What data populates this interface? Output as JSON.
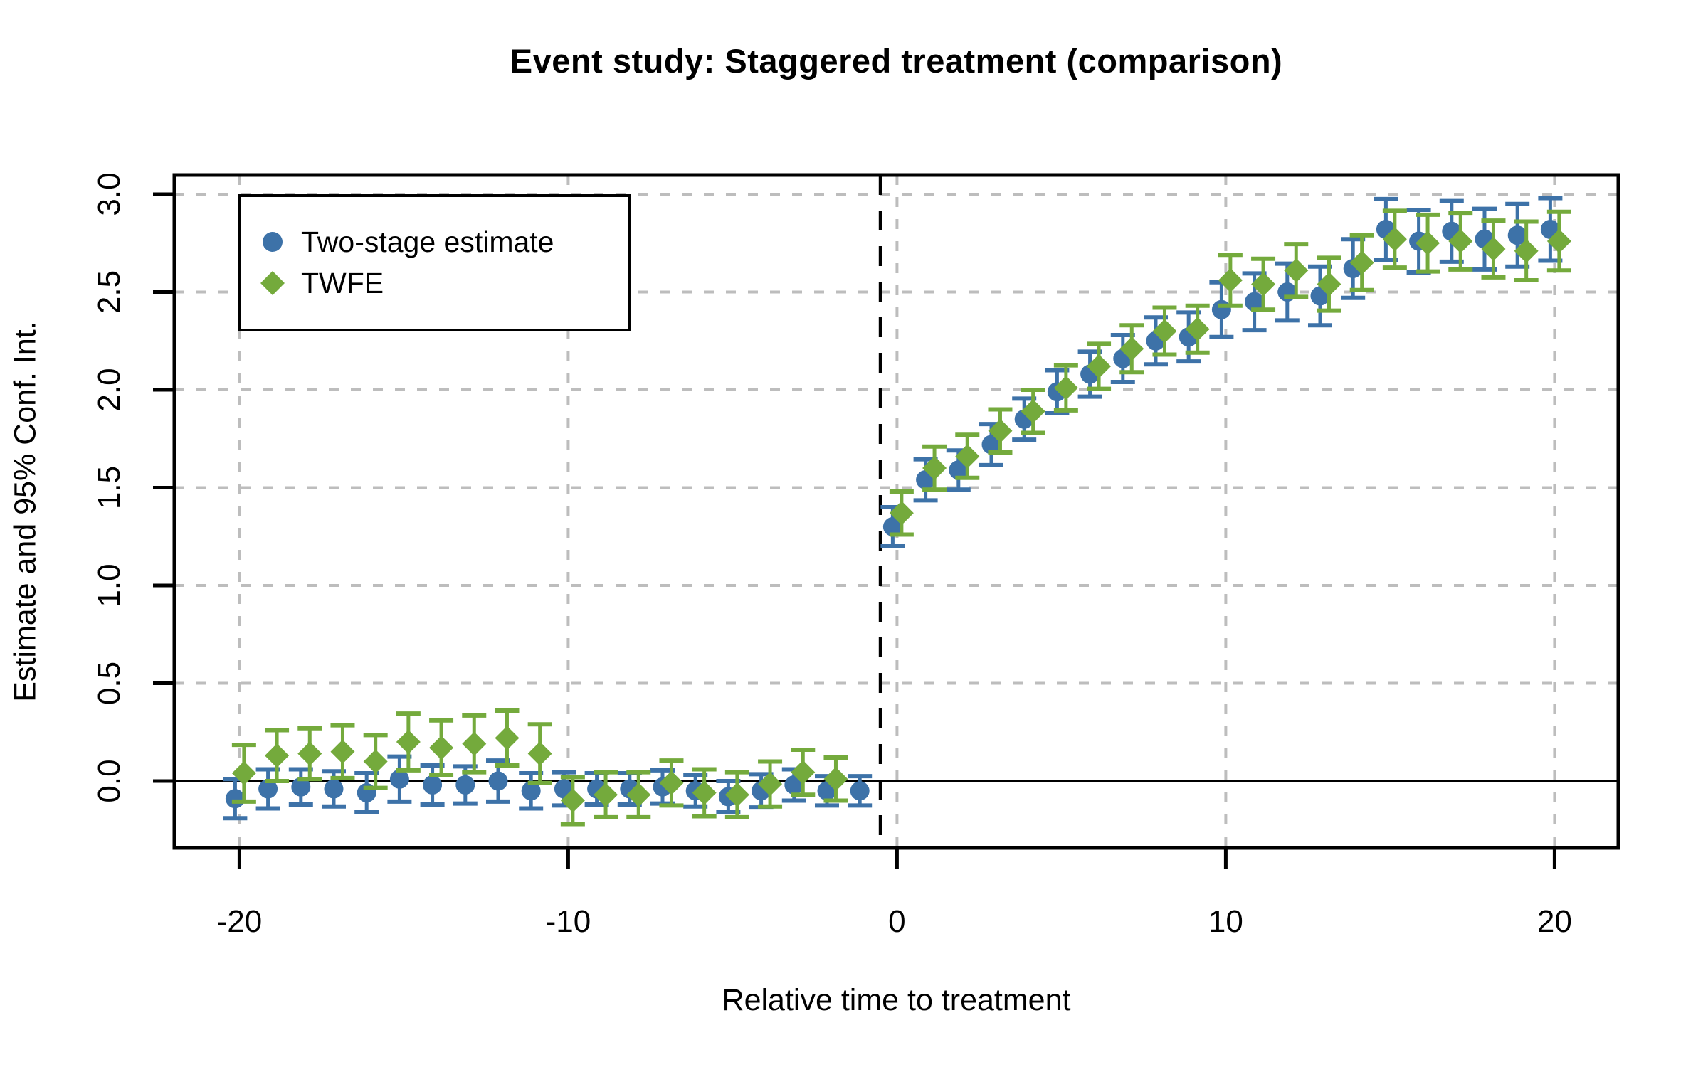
{
  "figure": {
    "title": "Event study: Staggered treatment (comparison)",
    "x_axis_label": "Relative time to treatment",
    "y_axis_label": "Estimate and 95% Conf. Int."
  },
  "legend": {
    "items": [
      {
        "label": "Two-stage estimate",
        "marker": "circle",
        "color": "#3D72A8"
      },
      {
        "label": "TWFE",
        "marker": "diamond",
        "color": "#74AA3C"
      }
    ]
  },
  "colors": {
    "two_stage": "#3D72A8",
    "twfe": "#74AA3C",
    "grid": "#BDBDBD",
    "axis": "#000000",
    "background": "#FFFFFF"
  },
  "chart_data": {
    "type": "scatter",
    "title": "Event study: Staggered treatment (comparison)",
    "xlabel": "Relative time to treatment",
    "ylabel": "Estimate and 95% Conf. Int.",
    "x_ticks": [
      -20,
      -10,
      0,
      10,
      20
    ],
    "x_tick_labels": [
      "-20",
      "-10",
      "0",
      "10",
      "20"
    ],
    "y_ticks": [
      0.0,
      0.5,
      1.0,
      1.5,
      2.0,
      2.5,
      3.0
    ],
    "y_tick_labels": [
      "0.0",
      "0.5",
      "1.0",
      "1.5",
      "2.0",
      "2.5",
      "3.0"
    ],
    "xlim": [
      -22,
      21.9
    ],
    "ylim": [
      -0.34,
      3.1
    ],
    "grid": true,
    "legend_position": "top-left",
    "reference_lines": {
      "horizontal_solid_y": 0,
      "vertical_dashed_x": -0.5
    },
    "point_columns": [
      "t",
      "estimate",
      "ci_low",
      "ci_high"
    ],
    "series": [
      {
        "name": "Two-stage estimate",
        "marker": "circle",
        "color": "#3D72A8",
        "x_offset": -0.13,
        "points": [
          [
            -20,
            -0.09,
            -0.19,
            0.01
          ],
          [
            -19,
            -0.04,
            -0.14,
            0.06
          ],
          [
            -18,
            -0.03,
            -0.12,
            0.06
          ],
          [
            -17,
            -0.04,
            -0.13,
            0.05
          ],
          [
            -16,
            -0.06,
            -0.16,
            0.04
          ],
          [
            -15,
            0.01,
            -0.105,
            0.125
          ],
          [
            -14,
            -0.02,
            -0.12,
            0.08
          ],
          [
            -13,
            -0.02,
            -0.115,
            0.075
          ],
          [
            -12,
            0.0,
            -0.105,
            0.105
          ],
          [
            -11,
            -0.05,
            -0.14,
            0.04
          ],
          [
            -10,
            -0.04,
            -0.125,
            0.045
          ],
          [
            -9,
            -0.04,
            -0.12,
            0.04
          ],
          [
            -8,
            -0.04,
            -0.12,
            0.04
          ],
          [
            -7,
            -0.03,
            -0.115,
            0.055
          ],
          [
            -6,
            -0.05,
            -0.13,
            0.03
          ],
          [
            -5,
            -0.08,
            -0.16,
            0.0
          ],
          [
            -4,
            -0.05,
            -0.135,
            0.035
          ],
          [
            -3,
            -0.02,
            -0.1,
            0.06
          ],
          [
            -2,
            -0.05,
            -0.125,
            0.025
          ],
          [
            -1,
            -0.05,
            -0.125,
            0.025
          ],
          [
            0,
            1.3,
            1.2,
            1.4
          ],
          [
            1,
            1.54,
            1.435,
            1.645
          ],
          [
            2,
            1.59,
            1.49,
            1.69
          ],
          [
            3,
            1.72,
            1.615,
            1.825
          ],
          [
            4,
            1.85,
            1.745,
            1.955
          ],
          [
            5,
            1.99,
            1.88,
            2.1
          ],
          [
            6,
            2.08,
            1.965,
            2.195
          ],
          [
            7,
            2.16,
            2.04,
            2.28
          ],
          [
            8,
            2.25,
            2.13,
            2.37
          ],
          [
            9,
            2.27,
            2.145,
            2.395
          ],
          [
            10,
            2.41,
            2.27,
            2.55
          ],
          [
            11,
            2.45,
            2.305,
            2.595
          ],
          [
            12,
            2.5,
            2.355,
            2.645
          ],
          [
            13,
            2.48,
            2.33,
            2.63
          ],
          [
            14,
            2.62,
            2.47,
            2.77
          ],
          [
            15,
            2.82,
            2.665,
            2.975
          ],
          [
            16,
            2.76,
            2.6,
            2.92
          ],
          [
            17,
            2.81,
            2.655,
            2.965
          ],
          [
            18,
            2.77,
            2.615,
            2.925
          ],
          [
            19,
            2.79,
            2.63,
            2.95
          ],
          [
            20,
            2.82,
            2.66,
            2.98
          ]
        ]
      },
      {
        "name": "TWFE",
        "marker": "diamond",
        "color": "#74AA3C",
        "x_offset": 0.14,
        "points": [
          [
            -20,
            0.04,
            -0.105,
            0.185
          ],
          [
            -19,
            0.13,
            0.0,
            0.26
          ],
          [
            -18,
            0.14,
            0.01,
            0.27
          ],
          [
            -17,
            0.15,
            0.015,
            0.285
          ],
          [
            -16,
            0.1,
            -0.035,
            0.235
          ],
          [
            -15,
            0.2,
            0.055,
            0.345
          ],
          [
            -14,
            0.17,
            0.03,
            0.31
          ],
          [
            -13,
            0.19,
            0.045,
            0.335
          ],
          [
            -12,
            0.22,
            0.08,
            0.36
          ],
          [
            -11,
            0.14,
            -0.01,
            0.29
          ],
          [
            -10,
            -0.1,
            -0.22,
            0.02
          ],
          [
            -9,
            -0.07,
            -0.185,
            0.045
          ],
          [
            -8,
            -0.07,
            -0.185,
            0.045
          ],
          [
            -7,
            -0.01,
            -0.125,
            0.105
          ],
          [
            -6,
            -0.06,
            -0.18,
            0.06
          ],
          [
            -5,
            -0.07,
            -0.185,
            0.045
          ],
          [
            -4,
            -0.015,
            -0.13,
            0.1
          ],
          [
            -3,
            0.045,
            -0.07,
            0.16
          ],
          [
            -2,
            0.01,
            -0.1,
            0.12
          ],
          [
            0,
            1.37,
            1.26,
            1.48
          ],
          [
            1,
            1.6,
            1.49,
            1.71
          ],
          [
            2,
            1.66,
            1.55,
            1.77
          ],
          [
            3,
            1.79,
            1.68,
            1.9
          ],
          [
            4,
            1.89,
            1.78,
            2.0
          ],
          [
            5,
            2.01,
            1.895,
            2.125
          ],
          [
            6,
            2.12,
            2.005,
            2.235
          ],
          [
            7,
            2.21,
            2.09,
            2.33
          ],
          [
            8,
            2.3,
            2.18,
            2.42
          ],
          [
            9,
            2.31,
            2.19,
            2.43
          ],
          [
            10,
            2.56,
            2.43,
            2.69
          ],
          [
            11,
            2.54,
            2.41,
            2.67
          ],
          [
            12,
            2.61,
            2.475,
            2.745
          ],
          [
            13,
            2.54,
            2.405,
            2.675
          ],
          [
            14,
            2.65,
            2.51,
            2.79
          ],
          [
            15,
            2.77,
            2.625,
            2.915
          ],
          [
            16,
            2.75,
            2.605,
            2.895
          ],
          [
            17,
            2.76,
            2.615,
            2.905
          ],
          [
            18,
            2.72,
            2.575,
            2.865
          ],
          [
            19,
            2.71,
            2.56,
            2.86
          ],
          [
            20,
            2.76,
            2.61,
            2.91
          ]
        ]
      }
    ]
  }
}
